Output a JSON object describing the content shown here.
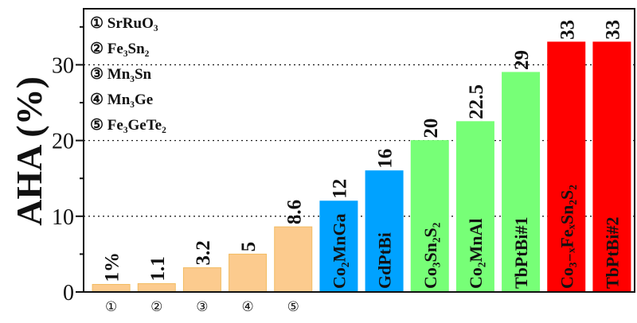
{
  "chart_data": {
    "type": "bar",
    "title": "",
    "xlabel": "",
    "ylabel": "AHA (%)",
    "ylim": [
      0,
      37.4
    ],
    "yticks": [
      0,
      10,
      20,
      30
    ],
    "grid": "horizontal dotted at 10, 20, 30",
    "categories": [
      "①",
      "②",
      "③",
      "④",
      "⑤",
      "Co₂MnGa",
      "GdPtBi",
      "Co₃Sn₂S₂",
      "Co₂MnAl",
      "TbPtBi#1",
      "Co₃₋ₓFeₓSn₂S₂",
      "TbPtBi#2"
    ],
    "x_tick_labels": [
      "①",
      "②",
      "③",
      "④",
      "⑤"
    ],
    "bar_inner_labels": [
      "",
      "",
      "",
      "",
      "",
      "Co₂MnGa",
      "GdPtBi",
      "Co₃Sn₂S₂",
      "Co₂MnAl",
      "TbPtBi#1",
      "Co₃₋ₓFeₓSn₂S₂",
      "TbPtBi#2"
    ],
    "values": [
      1,
      1.1,
      3.2,
      5,
      8.6,
      12,
      16,
      20,
      22.5,
      29,
      33,
      33
    ],
    "data_labels": [
      "1%",
      "1.1",
      "3.2",
      "5",
      "8.6",
      "12",
      "16",
      "20",
      "22.5",
      "29",
      "33",
      "33"
    ],
    "colors": [
      "#fccb8e",
      "#fccb8e",
      "#fccb8e",
      "#fccb8e",
      "#fccb8e",
      "#00a2ff",
      "#00a2ff",
      "#77ff77",
      "#77ff77",
      "#77ff77",
      "#ff0000",
      "#ff0000"
    ],
    "legend_position": "top-left",
    "legend": [
      "① SrRuO₃",
      "② Fe₃Sn₂",
      "③ Mn₃Sn",
      "④ Mn₃Ge",
      "⑤ Fe₃GeTe₂"
    ]
  }
}
